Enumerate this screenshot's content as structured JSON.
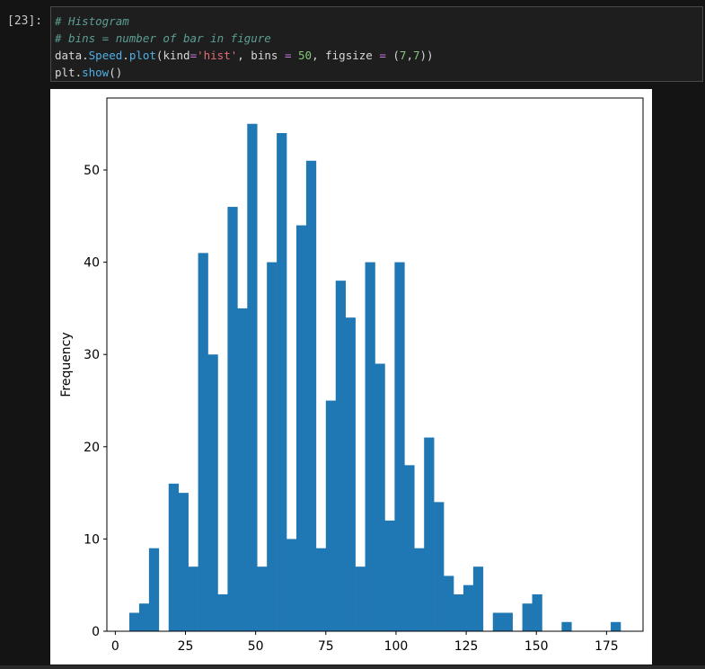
{
  "cell": {
    "prompt": "[23]:",
    "code": {
      "line1": "# Histogram",
      "line2": "# bins = number of bar in figure",
      "line3": {
        "a": "data.",
        "attr": "Speed",
        "b": ".",
        "attr2": "plot",
        "c": "(kind",
        "eq1": "=",
        "str": "'hist'",
        "d": ", bins ",
        "eq2": "=",
        "e": " ",
        "num1": "50",
        "f": ", figsize ",
        "eq3": "=",
        "g": " (",
        "num2": "7",
        "h": ",",
        "num3": "7",
        "i": "))"
      },
      "line4": {
        "a": "plt.",
        "attr": "show",
        "b": "()"
      }
    }
  },
  "chart_data": {
    "type": "bar",
    "title": "",
    "xlabel": "",
    "ylabel": "Frequency",
    "xlim": [
      -3,
      188
    ],
    "ylim": [
      0,
      57.8
    ],
    "xticks": [
      0,
      25,
      50,
      75,
      100,
      125,
      150,
      175
    ],
    "yticks": [
      0,
      10,
      20,
      30,
      40,
      50
    ],
    "bin_width": 3.5,
    "bin_start": 5,
    "bar_color": "#1f77b4",
    "values": [
      2,
      3,
      9,
      0,
      16,
      15,
      7,
      41,
      30,
      4,
      46,
      35,
      55,
      7,
      40,
      54,
      10,
      44,
      51,
      9,
      25,
      38,
      34,
      7,
      40,
      29,
      12,
      40,
      18,
      9,
      21,
      14,
      6,
      4,
      5,
      7,
      0,
      2,
      2,
      0,
      3,
      4,
      0,
      0,
      1,
      0,
      0,
      0,
      0,
      1
    ],
    "grid": false
  }
}
